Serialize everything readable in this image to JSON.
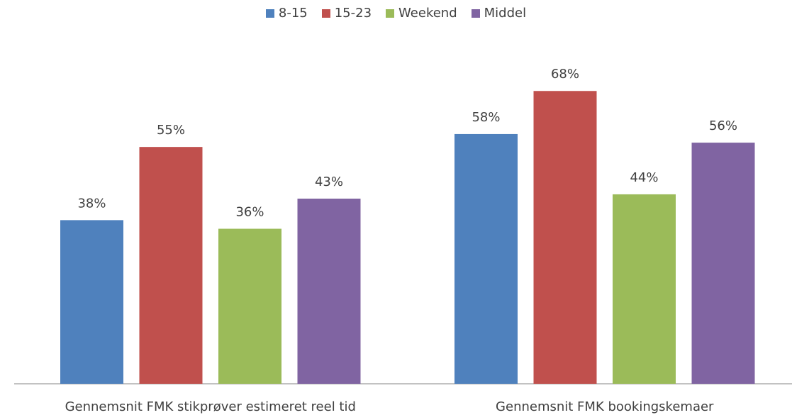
{
  "chart_data": {
    "type": "bar",
    "categories": [
      "Gennemsnit FMK stikprøver estimeret reel tid",
      "Gennemsnit FMK bookingskemaer"
    ],
    "series": [
      {
        "name": "8-15",
        "color": "#4F81BD",
        "values": [
          38,
          58
        ],
        "labels": [
          "38%",
          "58%"
        ]
      },
      {
        "name": "15-23",
        "color": "#C0504D",
        "values": [
          55,
          68
        ],
        "labels": [
          "55%",
          "68%"
        ]
      },
      {
        "name": "Weekend",
        "color": "#9BBB59",
        "values": [
          36,
          44
        ],
        "labels": [
          "36%",
          "44%"
        ]
      },
      {
        "name": "Middel",
        "color": "#8064A2",
        "values": [
          43,
          56
        ],
        "labels": [
          "43%",
          "56%"
        ]
      }
    ],
    "ylim": [
      0,
      80
    ],
    "unit": "%",
    "legend_position": "top",
    "grid": false,
    "xlabel": "",
    "ylabel": "",
    "title": ""
  }
}
